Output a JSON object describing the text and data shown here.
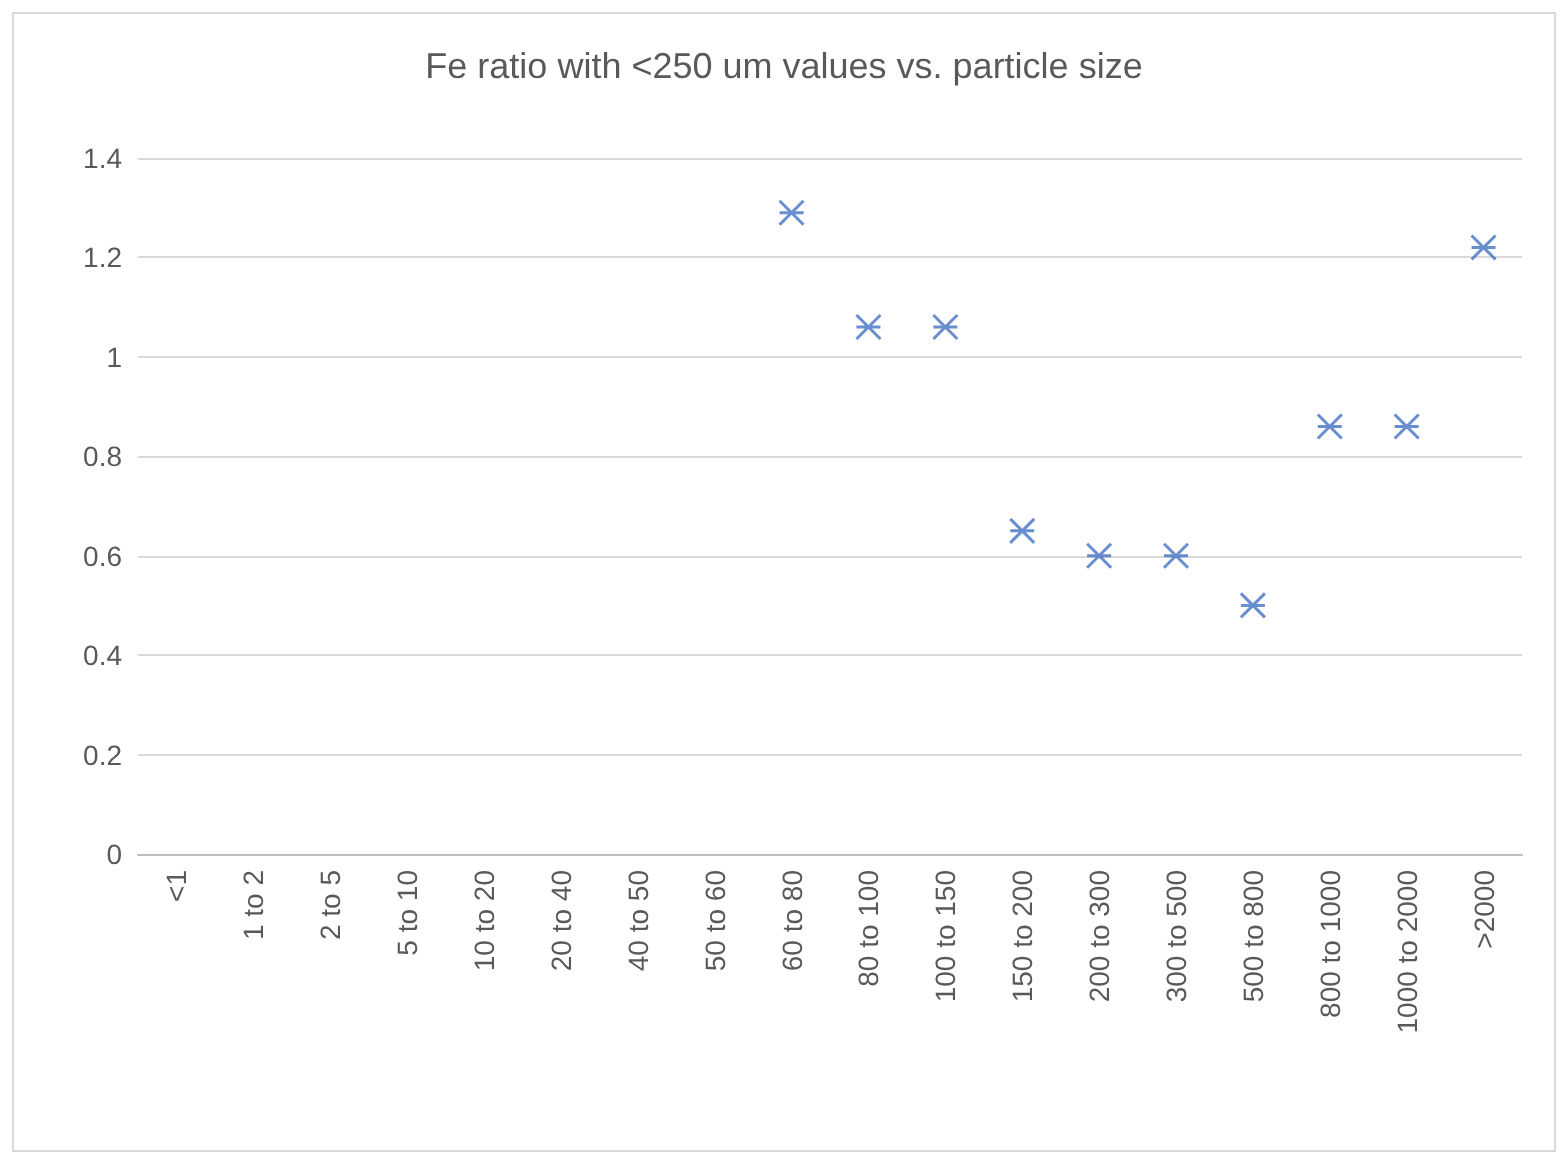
{
  "chart_data": {
    "type": "scatter",
    "title": "Fe ratio with <250 um values vs. particle size",
    "categories": [
      "<1",
      "1 to 2",
      "2 to 5",
      "5 to 10",
      "10 to 20",
      "20 to 40",
      "40 to 50",
      "50 to 60",
      "60 to 80",
      "80 to 100",
      "100 to 150",
      "150 to 200",
      "200 to 300",
      "300 to 500",
      "500 to 800",
      "800 to 1000",
      "1000 to 2000",
      ">2000"
    ],
    "values": [
      null,
      null,
      null,
      null,
      null,
      null,
      null,
      null,
      1.29,
      1.06,
      1.06,
      0.65,
      0.6,
      0.6,
      0.5,
      0.86,
      0.86,
      1.22
    ],
    "color": "#4472c4",
    "ylim": [
      0,
      1.4
    ],
    "yticks": [
      0,
      0.2,
      0.4,
      0.6,
      0.8,
      1,
      1.2,
      1.4
    ],
    "grid": "y",
    "marker": "cross"
  }
}
